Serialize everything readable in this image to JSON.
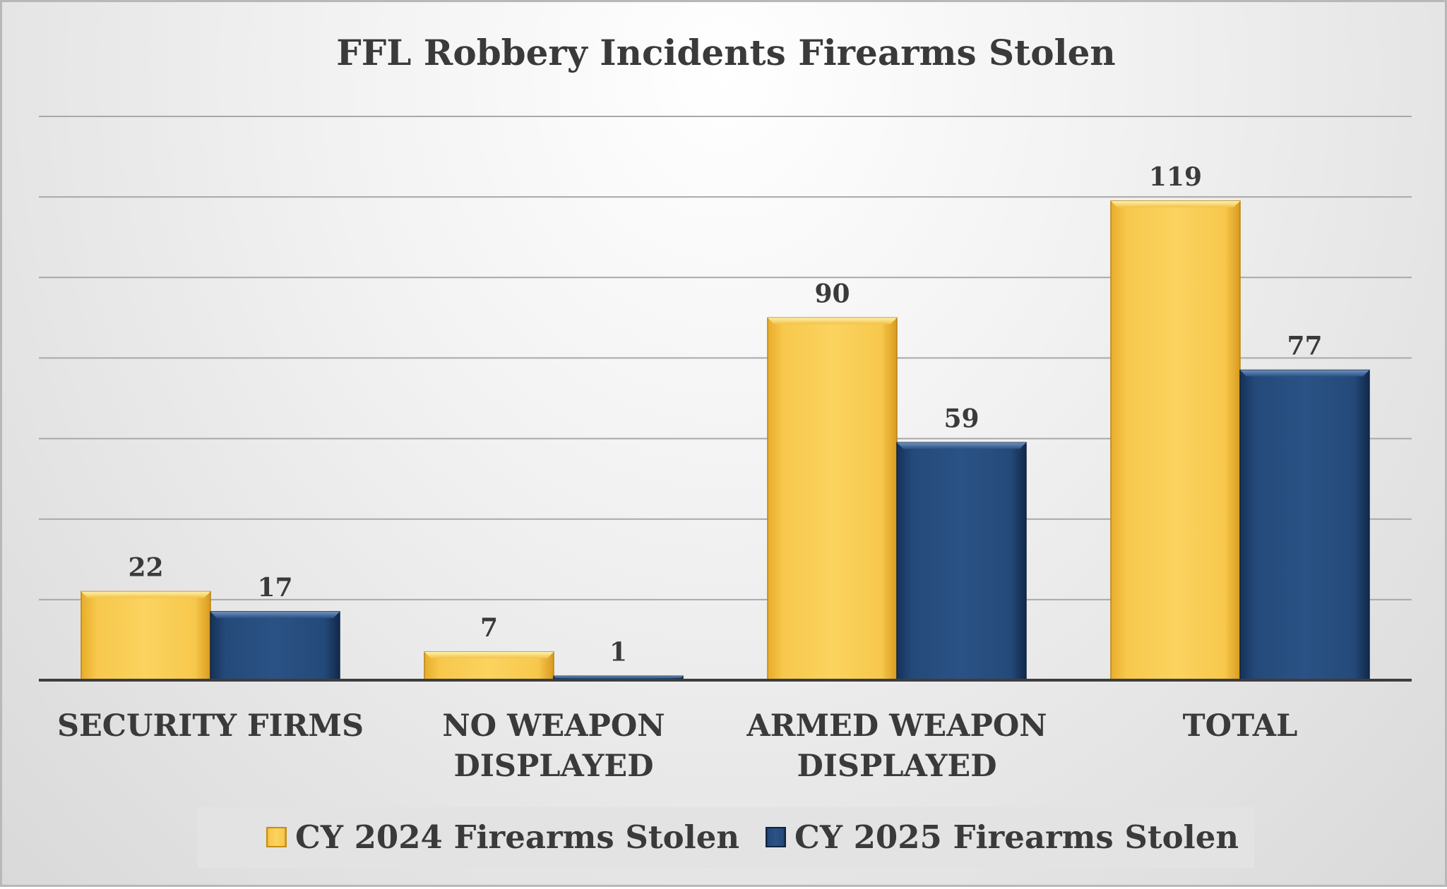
{
  "chart_data": {
    "type": "bar",
    "title": "FFL Robbery Incidents Firearms Stolen",
    "categories": [
      [
        "SECURITY FIRMS"
      ],
      [
        "NO WEAPON",
        "DISPLAYED"
      ],
      [
        "ARMED WEAPON",
        "DISPLAYED"
      ],
      [
        "TOTAL"
      ]
    ],
    "series": [
      {
        "name": "CY 2024 Firearms Stolen",
        "values": [
          22,
          7,
          90,
          119
        ],
        "color": "#f6c443"
      },
      {
        "name": "CY 2025 Firearms Stolen",
        "values": [
          17,
          1,
          59,
          77
        ],
        "color": "#24497a"
      }
    ],
    "ylim": [
      0,
      140
    ],
    "gridlines": true,
    "grid_step": 20,
    "legend_position": "bottom",
    "data_labels": true
  }
}
